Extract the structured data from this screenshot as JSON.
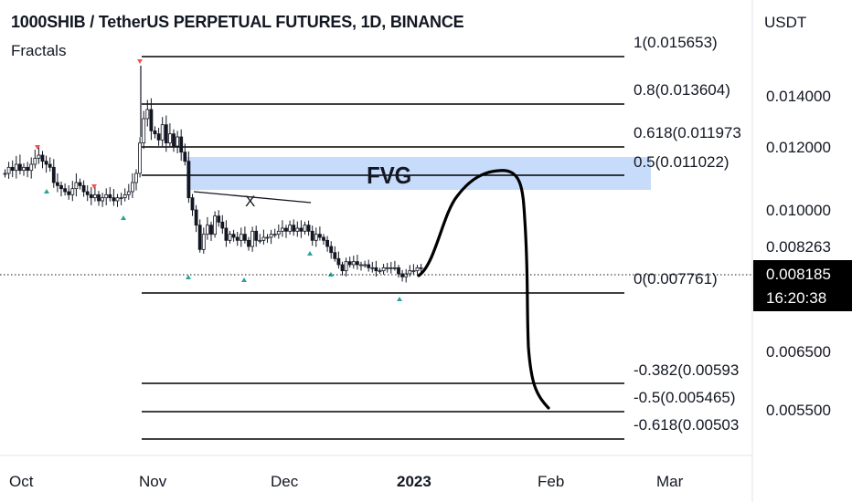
{
  "header": {
    "title": "1000SHIB / TetherUS PERPETUAL FUTURES, 1D, BINANCE",
    "indicator": "Fractals"
  },
  "price_axis": {
    "currency": "USDT",
    "ticks": [
      {
        "label": "0.014000",
        "value": 0.014
      },
      {
        "label": "0.012000",
        "value": 0.012
      },
      {
        "label": "0.010000",
        "value": 0.01
      },
      {
        "label": "0.008263",
        "value": 0.008263
      },
      {
        "label": "0.006500",
        "value": 0.0065
      },
      {
        "label": "0.005500",
        "value": 0.0055
      }
    ],
    "current_price": "0.008185",
    "countdown": "16:20:38"
  },
  "time_axis": {
    "ticks": [
      {
        "label": "Oct",
        "bold": false
      },
      {
        "label": "Nov",
        "bold": false
      },
      {
        "label": "Dec",
        "bold": false
      },
      {
        "label": "2023",
        "bold": true
      },
      {
        "label": "Feb",
        "bold": false
      },
      {
        "label": "Mar",
        "bold": false
      }
    ]
  },
  "annotations": {
    "fvg": "FVG",
    "x_mark": "X"
  },
  "colors": {
    "fvg_zone": "#c7dbfb",
    "up_fractal": "#26a69a",
    "down_fractal": "#ef5350",
    "line": "#000000"
  },
  "chart_data": {
    "type": "candlestick",
    "symbol": "1000SHIB / TetherUS PERPETUAL FUTURES",
    "interval": "1D",
    "exchange": "BINANCE",
    "fib_levels": [
      {
        "label": "1(0.015653)",
        "ratio": 1,
        "price": 0.015653
      },
      {
        "label": "0.8(0.013604)",
        "ratio": 0.8,
        "price": 0.013604
      },
      {
        "label": "0.618(0.011973",
        "ratio": 0.618,
        "price": 0.011973
      },
      {
        "label": "0.5(0.011022)",
        "ratio": 0.5,
        "price": 0.011022
      },
      {
        "label": "0(0.007761)",
        "ratio": 0,
        "price": 0.007761
      },
      {
        "label": "-0.382(0.00593",
        "ratio": -0.382,
        "price": 0.00593
      },
      {
        "label": "-0.5(0.005465)",
        "ratio": -0.5,
        "price": 0.005465
      },
      {
        "label": "-0.618(0.00503",
        "ratio": -0.618,
        "price": 0.00503
      }
    ],
    "fvg_zone": {
      "top": 0.0119,
      "bottom": 0.0105
    },
    "last_price": 0.008185,
    "closes": [
      0.0111,
      0.0113,
      0.0112,
      0.0114,
      0.0112,
      0.0113,
      0.0112,
      0.0114,
      0.0116,
      0.0117,
      0.0115,
      0.0114,
      0.0113,
      0.0108,
      0.0107,
      0.0106,
      0.0105,
      0.0104,
      0.0106,
      0.0108,
      0.0107,
      0.0105,
      0.0104,
      0.0103,
      0.0104,
      0.0102,
      0.0103,
      0.0104,
      0.0103,
      0.0102,
      0.0103,
      0.0103,
      0.0104,
      0.0105,
      0.0108,
      0.0111,
      0.0121,
      0.0129,
      0.0132,
      0.0125,
      0.0124,
      0.0122,
      0.0127,
      0.0121,
      0.0124,
      0.012,
      0.0123,
      0.0118,
      0.0115,
      0.0103,
      0.0099,
      0.0094,
      0.0086,
      0.0091,
      0.0094,
      0.0091,
      0.0097,
      0.0095,
      0.0093,
      0.0089,
      0.0091,
      0.009,
      0.0089,
      0.0091,
      0.0089,
      0.0087,
      0.0092,
      0.0089,
      0.0089,
      0.009,
      0.009,
      0.0091,
      0.0091,
      0.0092,
      0.0093,
      0.0092,
      0.0094,
      0.0092,
      0.0093,
      0.0092,
      0.0094,
      0.0092,
      0.0089,
      0.0091,
      0.009,
      0.0089,
      0.0087,
      0.0085,
      0.0083,
      0.0081,
      0.0079,
      0.0082,
      0.0081,
      0.0082,
      0.0081,
      0.0081,
      0.0081,
      0.008,
      0.008,
      0.0079,
      0.0079,
      0.008,
      0.008,
      0.008,
      0.008,
      0.0078,
      0.0077,
      0.0078,
      0.0079,
      0.0079,
      0.008,
      0.008
    ],
    "projection": [
      [
        0.00818,
        0
      ],
      [
        0.0105,
        0.3
      ],
      [
        0.0115,
        0.55
      ],
      [
        0.0108,
        0.75
      ],
      [
        0.0055,
        1
      ]
    ]
  }
}
